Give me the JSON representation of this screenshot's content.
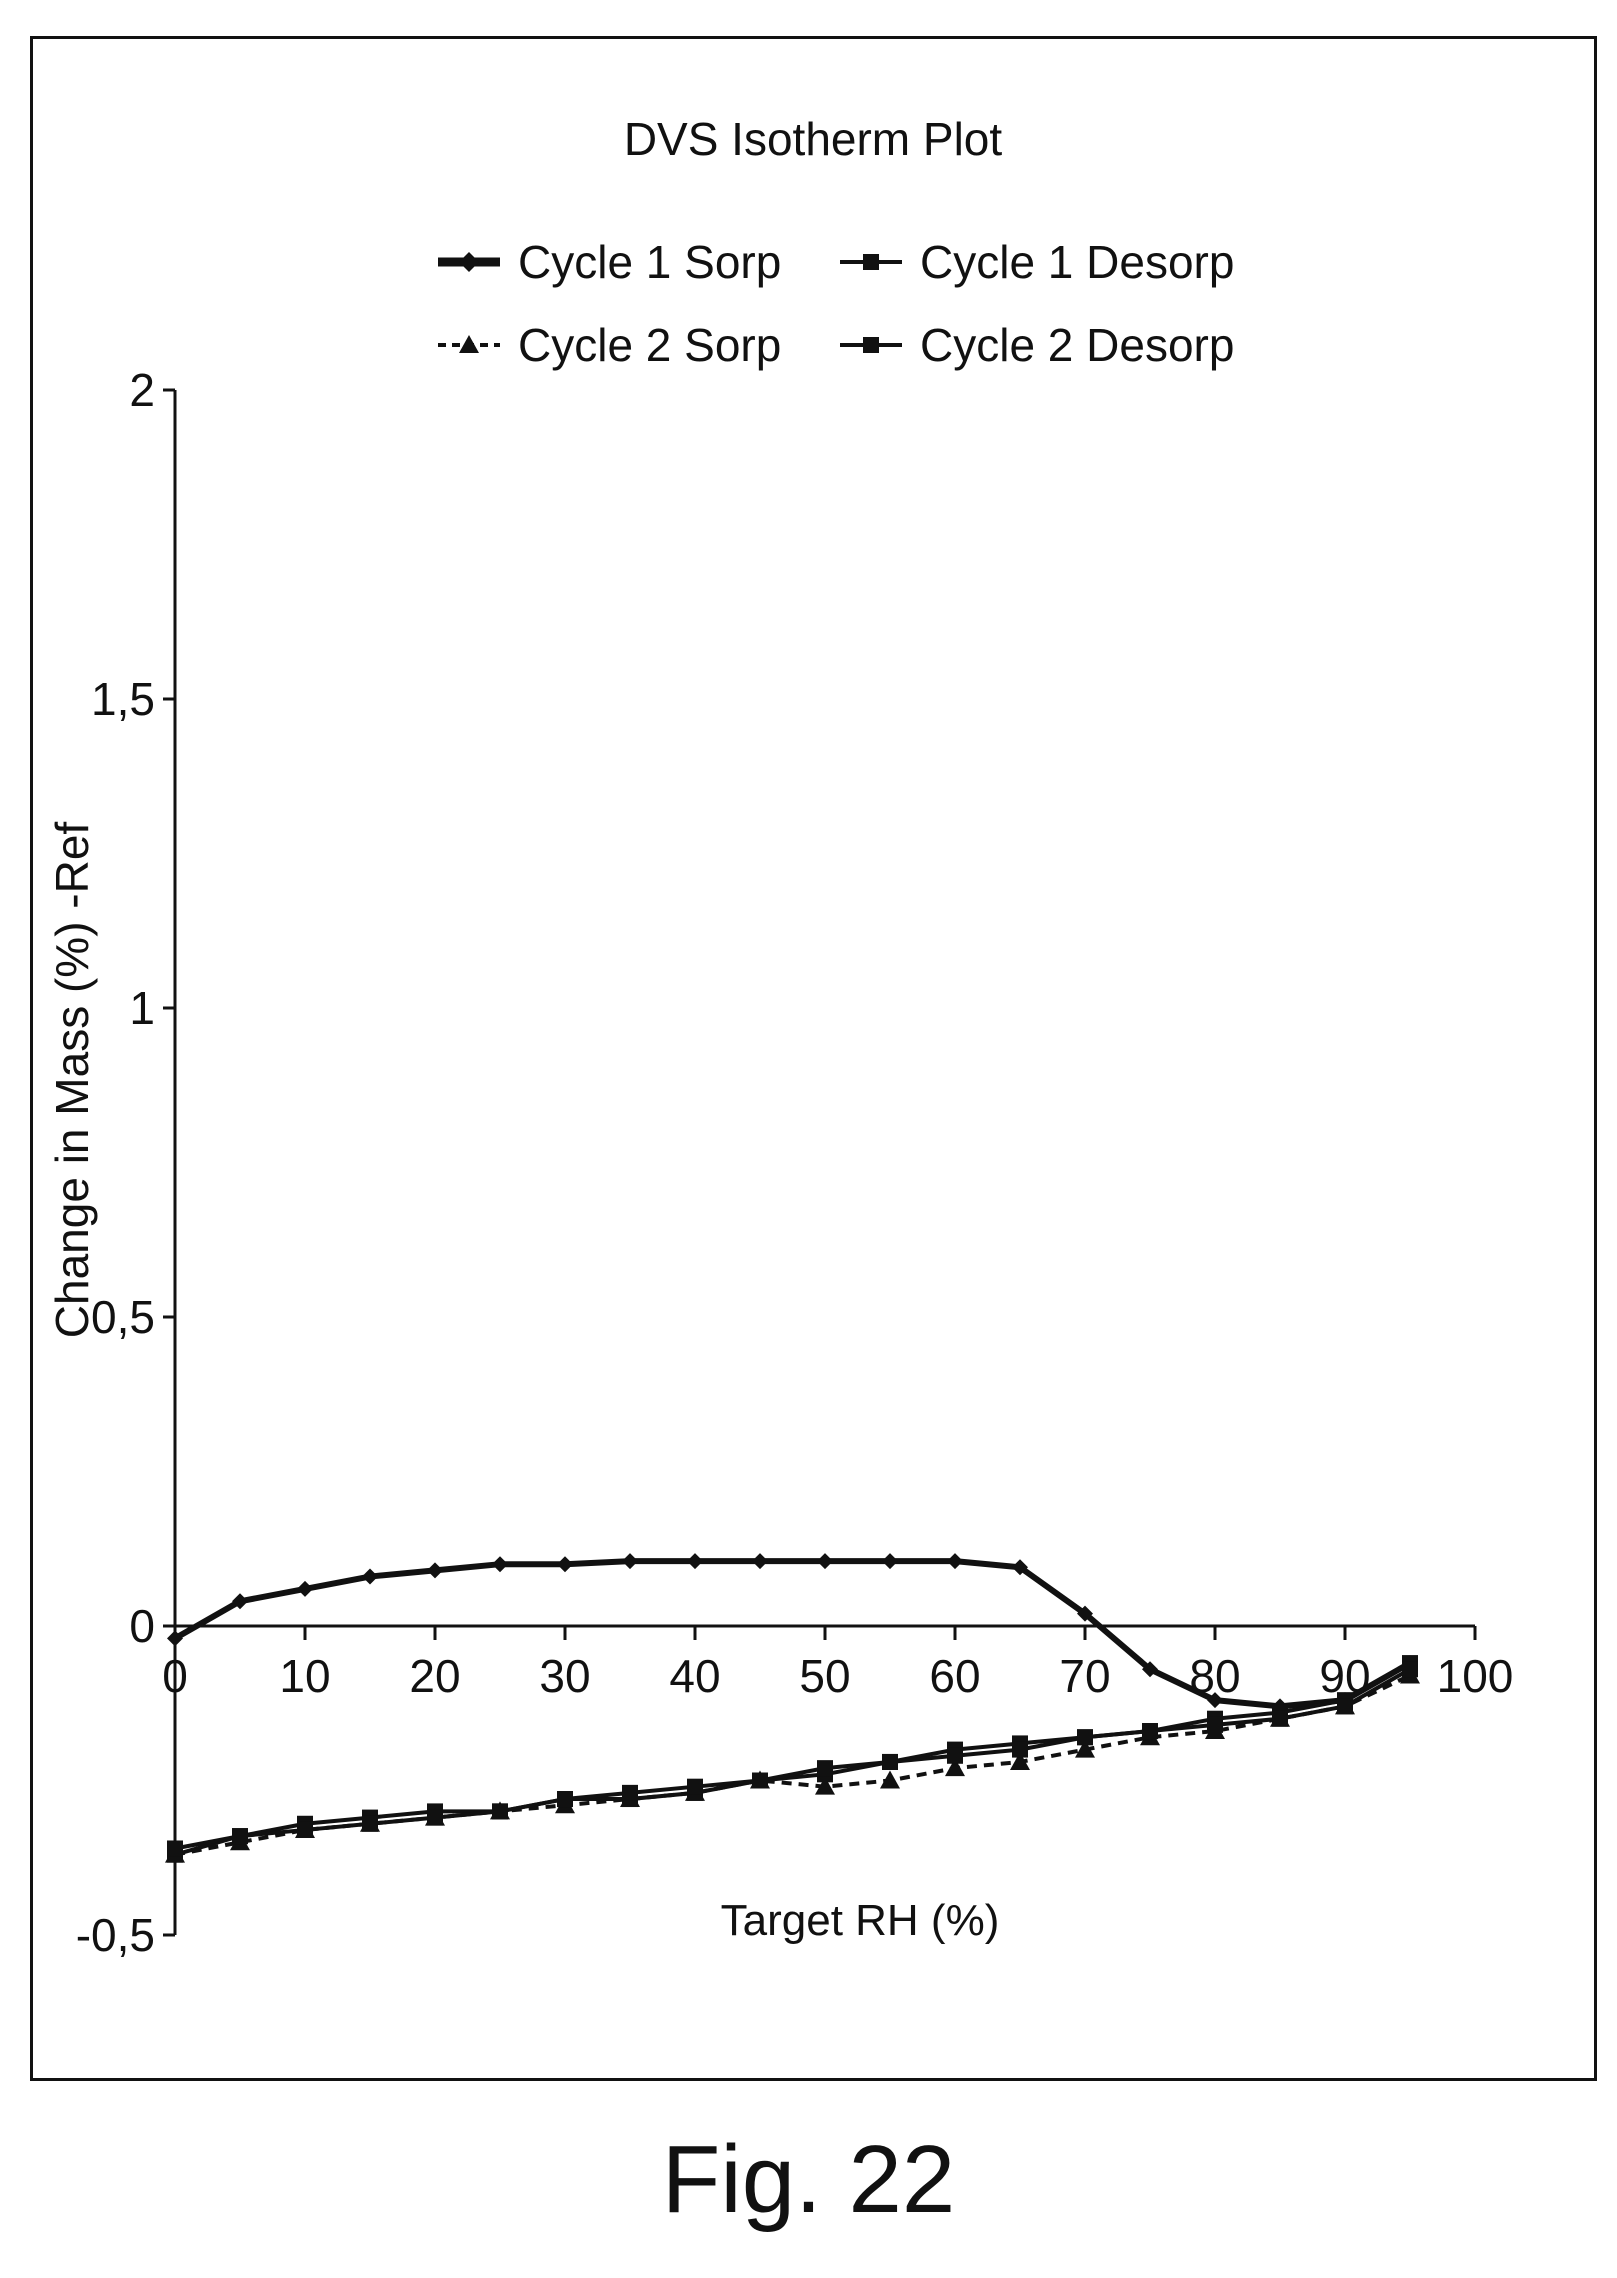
{
  "figure": {
    "caption": "Fig. 22"
  },
  "chart_data": {
    "type": "line",
    "title": "DVS Isotherm Plot",
    "xlabel": "Target RH (%)",
    "ylabel": "Change in Mass (%) -Ref",
    "xlim": [
      0,
      100
    ],
    "ylim": [
      -0.5,
      2
    ],
    "x_ticks": [
      0,
      10,
      20,
      30,
      40,
      50,
      60,
      70,
      80,
      90,
      100
    ],
    "x_tick_labels": [
      "0",
      "10",
      "20",
      "30",
      "40",
      "50",
      "60",
      "70",
      "80",
      "90",
      "100"
    ],
    "y_ticks": [
      -0.5,
      0,
      0.5,
      1,
      1.5,
      2
    ],
    "y_tick_labels": [
      "-0,5",
      "0",
      "0,5",
      "1",
      "1,5",
      "2"
    ],
    "grid": false,
    "legend_position": "top",
    "series": [
      {
        "name": "Cycle 1 Sorp",
        "color": "#111111",
        "marker": "diamond",
        "dash": "solid",
        "x": [
          0,
          5,
          10,
          15,
          20,
          25,
          30,
          35,
          40,
          45,
          50,
          55,
          60,
          65,
          70,
          75,
          80,
          85,
          90,
          95
        ],
        "y": [
          -0.02,
          0.04,
          0.06,
          0.08,
          0.09,
          0.1,
          0.1,
          0.105,
          0.105,
          0.105,
          0.105,
          0.105,
          0.105,
          0.095,
          0.02,
          -0.07,
          -0.12,
          -0.13,
          -0.12,
          -0.06
        ]
      },
      {
        "name": "Cycle 1 Desorp",
        "color": "#111111",
        "marker": "square",
        "dash": "solid",
        "x": [
          95,
          90,
          85,
          80,
          75,
          70,
          65,
          60,
          55,
          50,
          45,
          40,
          35,
          30,
          25,
          20,
          15,
          10,
          5,
          0
        ],
        "y": [
          -0.06,
          -0.12,
          -0.14,
          -0.15,
          -0.17,
          -0.18,
          -0.19,
          -0.2,
          -0.22,
          -0.24,
          -0.25,
          -0.27,
          -0.28,
          -0.28,
          -0.3,
          -0.3,
          -0.31,
          -0.32,
          -0.34,
          -0.37
        ]
      },
      {
        "name": "Cycle 2 Sorp",
        "color": "#111111",
        "marker": "triangle",
        "dash": "dashed",
        "x": [
          0,
          5,
          10,
          15,
          20,
          25,
          30,
          35,
          40,
          45,
          50,
          55,
          60,
          65,
          70,
          75,
          80,
          85,
          90,
          95
        ],
        "y": [
          -0.37,
          -0.35,
          -0.33,
          -0.32,
          -0.31,
          -0.3,
          -0.29,
          -0.28,
          -0.27,
          -0.25,
          -0.26,
          -0.25,
          -0.23,
          -0.22,
          -0.2,
          -0.18,
          -0.17,
          -0.15,
          -0.13,
          -0.08
        ]
      },
      {
        "name": "Cycle 2 Desorp",
        "color": "#111111",
        "marker": "square",
        "dash": "solid",
        "x": [
          95,
          90,
          85,
          80,
          75,
          70,
          65,
          60,
          55,
          50,
          45,
          40,
          35,
          30,
          25,
          20,
          15,
          10,
          5,
          0
        ],
        "y": [
          -0.07,
          -0.13,
          -0.15,
          -0.16,
          -0.17,
          -0.18,
          -0.2,
          -0.21,
          -0.22,
          -0.23,
          -0.25,
          -0.26,
          -0.27,
          -0.28,
          -0.3,
          -0.31,
          -0.32,
          -0.33,
          -0.34,
          -0.36
        ]
      }
    ]
  }
}
